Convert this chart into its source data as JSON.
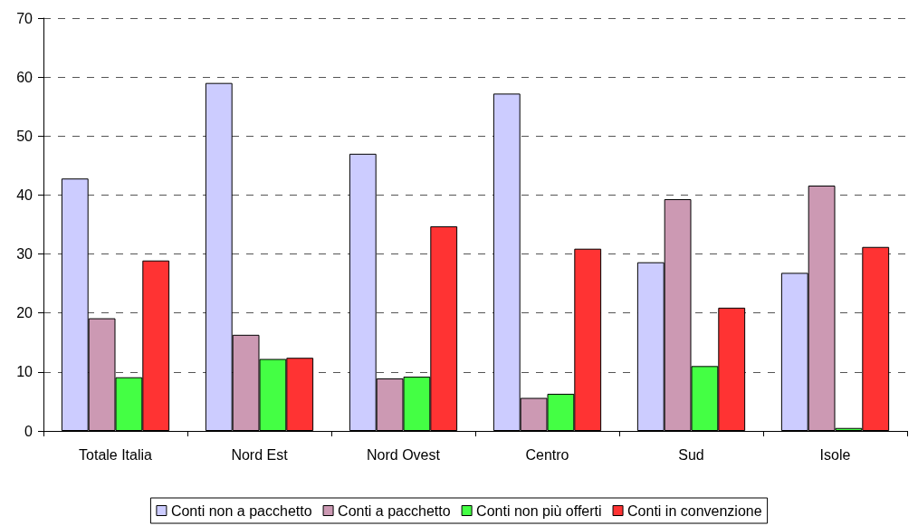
{
  "chart_data": {
    "type": "bar",
    "categories": [
      "Totale Italia",
      "Nord Est",
      "Nord Ovest",
      "Centro",
      "Sud",
      "Isole"
    ],
    "series": [
      {
        "name": "Conti non a pacchetto",
        "color": "#ccccff",
        "values": [
          42.8,
          59.0,
          47.0,
          57.2,
          28.6,
          26.8
        ]
      },
      {
        "name": "Conti a pacchetto",
        "color": "#cc99b3",
        "values": [
          19.1,
          16.3,
          8.9,
          5.6,
          39.3,
          41.6
        ]
      },
      {
        "name": "Conti non più offerti",
        "color": "#44ff44",
        "values": [
          9.1,
          12.2,
          9.2,
          6.3,
          11.0,
          0.5
        ]
      },
      {
        "name": "Conti in convenzione",
        "color": "#ff3333",
        "values": [
          28.9,
          12.4,
          34.7,
          30.9,
          20.9,
          31.2
        ]
      }
    ],
    "ylim": [
      0,
      70
    ],
    "yticks": [
      0,
      10,
      20,
      30,
      40,
      50,
      60,
      70
    ],
    "grid": "y",
    "legend": "bottom"
  }
}
